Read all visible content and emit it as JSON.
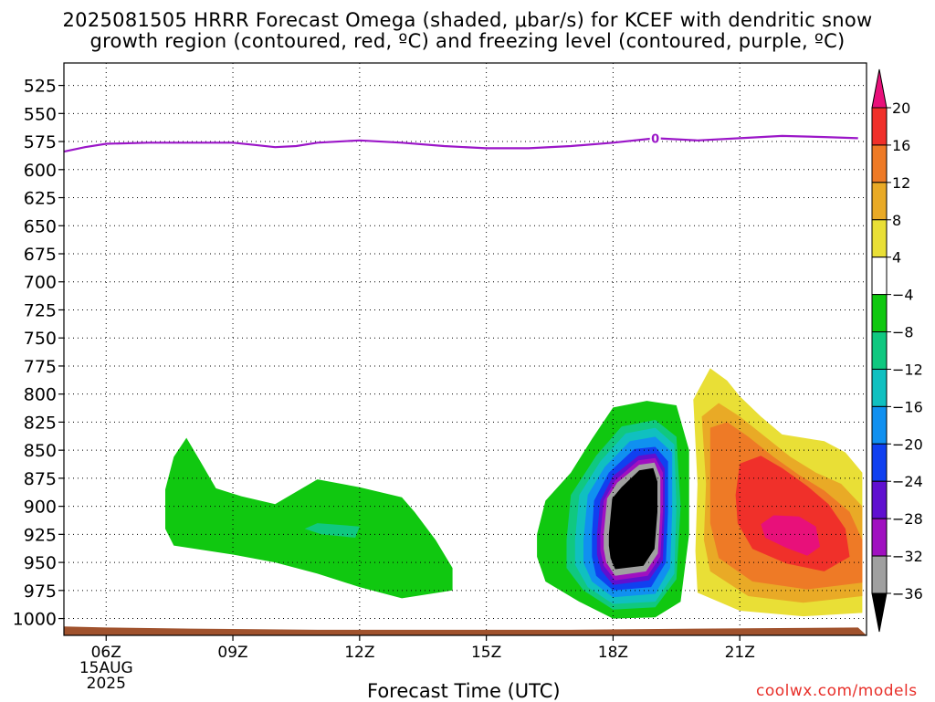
{
  "chart_data": {
    "type": "contour",
    "title_line1": "2025081505 HRRR Forecast Omega (shaded, μbar/s) for KCEF with dendritic snow",
    "title_line2": "growth region (contoured, red, ºC) and freezing level (contoured, purple, ºC)",
    "xlabel": "Forecast Time (UTC)",
    "credit": "coolwx.com/models",
    "x_range_hours_utc": [
      5,
      24
    ],
    "x_ticks": [
      {
        "hour": 6,
        "label": "06Z",
        "sub1": "15AUG",
        "sub2": "2025"
      },
      {
        "hour": 9,
        "label": "09Z"
      },
      {
        "hour": 12,
        "label": "12Z"
      },
      {
        "hour": 15,
        "label": "15Z"
      },
      {
        "hour": 18,
        "label": "18Z"
      },
      {
        "hour": 21,
        "label": "21Z"
      }
    ],
    "y_range_mb": [
      1015,
      505
    ],
    "y_ticks": [
      {
        "v": 525,
        "label": "525"
      },
      {
        "v": 550,
        "label": "550"
      },
      {
        "v": 575,
        "label": "575"
      },
      {
        "v": 600,
        "label": "600"
      },
      {
        "v": 625,
        "label": "625"
      },
      {
        "v": 650,
        "label": "650"
      },
      {
        "v": 675,
        "label": "675"
      },
      {
        "v": 700,
        "label": "700"
      },
      {
        "v": 725,
        "label": "725"
      },
      {
        "v": 750,
        "label": "750"
      },
      {
        "v": 775,
        "label": "775"
      },
      {
        "v": 800,
        "label": "800"
      },
      {
        "v": 825,
        "label": "825"
      },
      {
        "v": 850,
        "label": "850"
      },
      {
        "v": 875,
        "label": "875"
      },
      {
        "v": 900,
        "label": "900"
      },
      {
        "v": 925,
        "label": "925"
      },
      {
        "v": 950,
        "label": "950"
      },
      {
        "v": 975,
        "label": "975"
      },
      {
        "v": 1000,
        "label": "1000"
      }
    ],
    "grid": true,
    "freezing_level": {
      "label": "0",
      "color": "#9b16c8",
      "points": [
        [
          5.0,
          584
        ],
        [
          5.5,
          580
        ],
        [
          6.0,
          577
        ],
        [
          7.0,
          576
        ],
        [
          8.0,
          576
        ],
        [
          9.0,
          576
        ],
        [
          9.5,
          578
        ],
        [
          10.0,
          580
        ],
        [
          10.5,
          579
        ],
        [
          11.0,
          576
        ],
        [
          12.0,
          574
        ],
        [
          13.0,
          576
        ],
        [
          14.0,
          579
        ],
        [
          15.0,
          581
        ],
        [
          16.0,
          581
        ],
        [
          17.0,
          579
        ],
        [
          18.0,
          576
        ],
        [
          19.0,
          572
        ],
        [
          20.0,
          574
        ],
        [
          21.0,
          572
        ],
        [
          22.0,
          570
        ],
        [
          23.0,
          571
        ],
        [
          23.8,
          572
        ]
      ]
    },
    "surface": {
      "color": "#a0522d",
      "top_points": [
        [
          5.0,
          1007
        ],
        [
          6.0,
          1008
        ],
        [
          8.0,
          1009
        ],
        [
          11.0,
          1010
        ],
        [
          14.0,
          1010
        ],
        [
          17.0,
          1010
        ],
        [
          20.0,
          1009
        ],
        [
          23.8,
          1008
        ]
      ]
    },
    "colorbar": {
      "levels": [
        20,
        16,
        12,
        8,
        4,
        -4,
        -8,
        -12,
        -16,
        -20,
        -24,
        -28,
        -32,
        -36
      ],
      "labels": [
        "20",
        "16",
        "12",
        "8",
        "4",
        "−4",
        "−8",
        "−12",
        "−16",
        "−20",
        "−24",
        "−28",
        "−32",
        "−36"
      ],
      "colors": [
        "#e8107a",
        "#f0302a",
        "#ee7a26",
        "#e9aa26",
        "#e9df36",
        "#ffffff",
        "#10c810",
        "#10c880",
        "#10c0c0",
        "#1090f0",
        "#1040f0",
        "#6010d0",
        "#a010c0",
        "#a0a0a0",
        "#000000"
      ]
    },
    "regions": [
      {
        "name": "upward-motion-area-1",
        "value_bin": "-8 to -4",
        "color": "#10c810",
        "points": [
          [
            7.4,
            920
          ],
          [
            7.4,
            885
          ],
          [
            7.6,
            856
          ],
          [
            7.9,
            839
          ],
          [
            8.2,
            858
          ],
          [
            8.6,
            884
          ],
          [
            9.2,
            891
          ],
          [
            10.0,
            898
          ],
          [
            11.0,
            876
          ],
          [
            12.0,
            883
          ],
          [
            13.0,
            892
          ],
          [
            13.3,
            905
          ],
          [
            13.8,
            930
          ],
          [
            14.2,
            955
          ],
          [
            14.2,
            975
          ],
          [
            13.0,
            982
          ],
          [
            12.0,
            972
          ],
          [
            11.0,
            960
          ],
          [
            10.0,
            950
          ],
          [
            9.0,
            943
          ],
          [
            7.6,
            935
          ]
        ]
      },
      {
        "name": "upward-motion-core-1",
        "value_bin": "-12 to -8",
        "color": "#10c880",
        "points": [
          [
            10.7,
            920
          ],
          [
            11.0,
            915
          ],
          [
            12.0,
            918
          ],
          [
            11.9,
            928
          ],
          [
            11.1,
            925
          ]
        ]
      },
      {
        "name": "upward-motion-area-2",
        "value_bin": "-8 to -4",
        "color": "#10c810",
        "points": [
          [
            16.2,
            925
          ],
          [
            16.4,
            895
          ],
          [
            17.0,
            870
          ],
          [
            17.5,
            840
          ],
          [
            18.0,
            812
          ],
          [
            18.8,
            806
          ],
          [
            19.5,
            810
          ],
          [
            19.8,
            850
          ],
          [
            19.8,
            925
          ],
          [
            19.6,
            985
          ],
          [
            19.0,
            999
          ],
          [
            18.0,
            1000
          ],
          [
            17.2,
            985
          ],
          [
            16.4,
            967
          ],
          [
            16.2,
            945
          ]
        ]
      },
      {
        "name": "upward-motion-ring-12",
        "value_bin": "-12 to -8",
        "color": "#10c880",
        "points": [
          [
            16.9,
            930
          ],
          [
            17.0,
            890
          ],
          [
            17.6,
            855
          ],
          [
            18.2,
            829
          ],
          [
            19.0,
            823
          ],
          [
            19.5,
            838
          ],
          [
            19.6,
            900
          ],
          [
            19.5,
            965
          ],
          [
            19.0,
            990
          ],
          [
            18.0,
            992
          ],
          [
            17.3,
            975
          ],
          [
            16.9,
            955
          ]
        ]
      },
      {
        "name": "upward-motion-ring-16",
        "value_bin": "-16 to -12",
        "color": "#10c0c0",
        "points": [
          [
            17.1,
            930
          ],
          [
            17.2,
            890
          ],
          [
            17.7,
            860
          ],
          [
            18.3,
            835
          ],
          [
            19.0,
            830
          ],
          [
            19.45,
            845
          ],
          [
            19.5,
            900
          ],
          [
            19.45,
            960
          ],
          [
            19.0,
            985
          ],
          [
            18.0,
            987
          ],
          [
            17.4,
            972
          ],
          [
            17.1,
            952
          ]
        ]
      },
      {
        "name": "upward-motion-ring-20",
        "value_bin": "-20 to -16",
        "color": "#1090f0",
        "points": [
          [
            17.3,
            930
          ],
          [
            17.4,
            890
          ],
          [
            17.8,
            865
          ],
          [
            18.4,
            842
          ],
          [
            19.0,
            838
          ],
          [
            19.4,
            852
          ],
          [
            19.4,
            905
          ],
          [
            19.35,
            955
          ],
          [
            19.0,
            978
          ],
          [
            18.0,
            981
          ],
          [
            17.5,
            967
          ],
          [
            17.3,
            950
          ]
        ]
      },
      {
        "name": "upward-motion-ring-24",
        "value_bin": "-24 to -20",
        "color": "#1040f0",
        "points": [
          [
            17.5,
            925
          ],
          [
            17.55,
            895
          ],
          [
            17.9,
            870
          ],
          [
            18.5,
            849
          ],
          [
            19.0,
            847
          ],
          [
            19.3,
            860
          ],
          [
            19.3,
            905
          ],
          [
            19.25,
            950
          ],
          [
            18.9,
            972
          ],
          [
            18.0,
            975
          ],
          [
            17.6,
            962
          ],
          [
            17.5,
            945
          ]
        ]
      },
      {
        "name": "upward-motion-ring-28",
        "value_bin": "-28 to -24",
        "color": "#6010d0",
        "points": [
          [
            17.62,
            925
          ],
          [
            17.7,
            895
          ],
          [
            18.0,
            873
          ],
          [
            18.6,
            855
          ],
          [
            19.0,
            853
          ],
          [
            19.22,
            866
          ],
          [
            19.22,
            905
          ],
          [
            19.18,
            948
          ],
          [
            18.85,
            966
          ],
          [
            18.0,
            970
          ],
          [
            17.72,
            957
          ],
          [
            17.62,
            943
          ]
        ]
      },
      {
        "name": "upward-motion-ring-32",
        "value_bin": "-32 to -28",
        "color": "#a010c0",
        "points": [
          [
            17.7,
            925
          ],
          [
            17.78,
            895
          ],
          [
            18.05,
            877
          ],
          [
            18.6,
            859
          ],
          [
            19.0,
            857
          ],
          [
            19.18,
            870
          ],
          [
            19.18,
            905
          ],
          [
            19.12,
            945
          ],
          [
            18.82,
            962
          ],
          [
            18.05,
            966
          ],
          [
            17.78,
            953
          ],
          [
            17.7,
            940
          ]
        ]
      },
      {
        "name": "upward-motion-ring-36",
        "value_bin": "-36 to -32",
        "color": "#a0a0a0",
        "points": [
          [
            17.78,
            925
          ],
          [
            17.86,
            893
          ],
          [
            18.1,
            879
          ],
          [
            18.62,
            863
          ],
          [
            18.98,
            861
          ],
          [
            19.12,
            874
          ],
          [
            19.12,
            905
          ],
          [
            19.06,
            942
          ],
          [
            18.78,
            958
          ],
          [
            18.05,
            962
          ],
          [
            17.84,
            950
          ],
          [
            17.78,
            938
          ]
        ]
      },
      {
        "name": "upward-motion-max",
        "value_bin": "< -36",
        "color": "#000000",
        "points": [
          [
            17.9,
            925
          ],
          [
            17.98,
            893
          ],
          [
            18.2,
            883
          ],
          [
            18.62,
            868
          ],
          [
            18.95,
            866
          ],
          [
            19.05,
            878
          ],
          [
            19.05,
            905
          ],
          [
            18.98,
            938
          ],
          [
            18.72,
            953
          ],
          [
            18.05,
            956
          ],
          [
            17.94,
            946
          ],
          [
            17.9,
            935
          ]
        ]
      },
      {
        "name": "sinking-motion-area",
        "value_bin": "4 to 8",
        "color": "#e9df36",
        "points": [
          [
            20.0,
            880
          ],
          [
            19.9,
            805
          ],
          [
            20.3,
            777
          ],
          [
            20.7,
            788
          ],
          [
            21.0,
            802
          ],
          [
            21.5,
            820
          ],
          [
            22.0,
            836
          ],
          [
            23.0,
            842
          ],
          [
            23.5,
            852
          ],
          [
            23.9,
            870
          ],
          [
            23.9,
            995
          ],
          [
            22.5,
            998
          ],
          [
            21.0,
            993
          ],
          [
            20.0,
            977
          ],
          [
            19.95,
            940
          ]
        ]
      },
      {
        "name": "sinking-motion-8",
        "value_bin": "8 to 12",
        "color": "#e9aa26",
        "points": [
          [
            20.2,
            880
          ],
          [
            20.1,
            820
          ],
          [
            20.5,
            808
          ],
          [
            21.0,
            820
          ],
          [
            21.6,
            838
          ],
          [
            22.2,
            856
          ],
          [
            22.8,
            870
          ],
          [
            23.4,
            880
          ],
          [
            23.9,
            900
          ],
          [
            23.9,
            980
          ],
          [
            22.5,
            986
          ],
          [
            21.2,
            980
          ],
          [
            20.3,
            958
          ],
          [
            20.15,
            930
          ]
        ]
      },
      {
        "name": "sinking-motion-12",
        "value_bin": "12 to 16",
        "color": "#ee7a26",
        "points": [
          [
            20.3,
            880
          ],
          [
            20.3,
            830
          ],
          [
            20.7,
            825
          ],
          [
            21.2,
            838
          ],
          [
            21.8,
            856
          ],
          [
            22.4,
            872
          ],
          [
            23.0,
            886
          ],
          [
            23.6,
            905
          ],
          [
            23.9,
            930
          ],
          [
            23.9,
            968
          ],
          [
            22.6,
            974
          ],
          [
            21.3,
            967
          ],
          [
            20.5,
            946
          ],
          [
            20.3,
            915
          ]
        ]
      },
      {
        "name": "sinking-motion-16",
        "value_bin": "16 to 20",
        "color": "#f0302a",
        "points": [
          [
            20.9,
            890
          ],
          [
            21.0,
            862
          ],
          [
            21.5,
            855
          ],
          [
            22.0,
            866
          ],
          [
            22.6,
            882
          ],
          [
            23.1,
            898
          ],
          [
            23.5,
            920
          ],
          [
            23.6,
            945
          ],
          [
            23.0,
            958
          ],
          [
            22.1,
            951
          ],
          [
            21.3,
            938
          ],
          [
            20.95,
            915
          ]
        ]
      },
      {
        "name": "sinking-motion-max",
        "value_bin": "> 20",
        "color": "#e8107a",
        "points": [
          [
            21.5,
            916
          ],
          [
            21.8,
            908
          ],
          [
            22.4,
            909
          ],
          [
            22.8,
            918
          ],
          [
            22.9,
            936
          ],
          [
            22.6,
            944
          ],
          [
            22.1,
            937
          ],
          [
            21.6,
            928
          ]
        ]
      }
    ]
  }
}
